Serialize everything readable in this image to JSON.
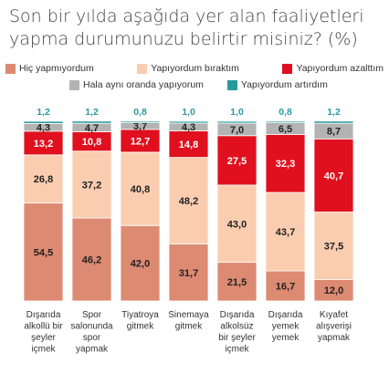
{
  "title_lines": [
    "Son bir yılda aşağıda yer alan faaliyetleri",
    "yapma durumunuzu belirtir misiniz? (%)"
  ],
  "colors": {
    "hic": "#dd8a72",
    "birakt": "#fbcdb0",
    "azalt": "#e0101e",
    "ayni": "#b3b3b3",
    "artir": "#2a9a9e"
  },
  "chart_data": {
    "type": "bar",
    "stacked": true,
    "title": "Son bir yılda aşağıda yer alan faaliyetleri yapma durumunuzu belirtir misiniz? (%)",
    "ylim": [
      0,
      100
    ],
    "legend_placement": "top",
    "grid": false,
    "categories": [
      [
        "Dışarıda",
        "alkollü bir",
        "şeyler",
        "içmek"
      ],
      [
        "Spor",
        "salonunda",
        "spor",
        "yapmak"
      ],
      [
        "Tiyatroya",
        "gitmek"
      ],
      [
        "Sinemaya",
        "gitmek"
      ],
      [
        "Dışarıda",
        "alkolsüz",
        "bir şeyler",
        "içmek"
      ],
      [
        "Dışarıda",
        "yemek",
        "yemek"
      ],
      [
        "Kıyafet",
        "alışverişi",
        "yapmak"
      ]
    ],
    "series": [
      {
        "name": "Hiç yapmıyordum",
        "key": "hic",
        "values": [
          54.5,
          46.2,
          42.0,
          31.7,
          21.5,
          16.7,
          12.0
        ]
      },
      {
        "name": "Yapıyordum bıraktım",
        "key": "birakt",
        "values": [
          26.8,
          37.2,
          40.8,
          48.2,
          43.0,
          43.7,
          37.5
        ]
      },
      {
        "name": "Yapıyordum azalttım",
        "key": "azalt",
        "values": [
          13.2,
          10.8,
          12.7,
          14.8,
          27.5,
          32.3,
          40.7
        ]
      },
      {
        "name": "Hala aynı oranda yapıyorum",
        "key": "ayni",
        "values": [
          4.3,
          4.7,
          3.7,
          4.3,
          7.0,
          6.5,
          8.7
        ]
      },
      {
        "name": "Yapıyordum artırdım",
        "key": "artir",
        "values": [
          1.2,
          1.2,
          0.8,
          1.0,
          1.0,
          0.8,
          1.2
        ]
      }
    ]
  }
}
